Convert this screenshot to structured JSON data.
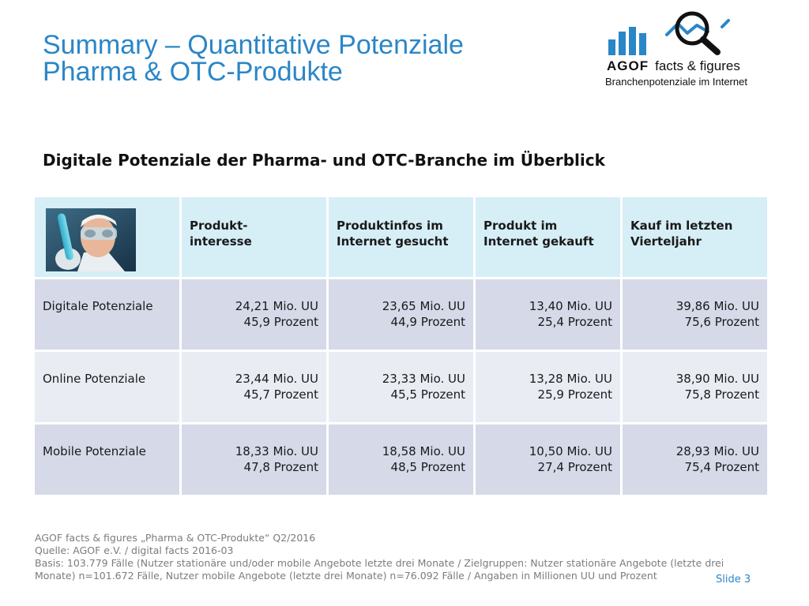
{
  "title": {
    "line1": "Summary – Quantitative Potenziale",
    "line2": "Pharma & OTC-Produkte"
  },
  "logo": {
    "brand": "AGOF",
    "product": "facts & figures",
    "tagline": "Branchenpotenziale im Internet",
    "colors": {
      "bars": "#2b86c7",
      "line": "#2b86c7",
      "magnifier": "#111111"
    },
    "icon": "magnifier-chart-icon"
  },
  "subtitle": "Digitale Potenziale der Pharma- und OTC-Branche im Überblick",
  "table": {
    "header_image": "lab-scientist-photo",
    "columns": [
      {
        "line1": "Produkt-",
        "line2": "interesse"
      },
      {
        "line1": "Produktinfos im",
        "line2": "Internet gesucht"
      },
      {
        "line1": "Produkt im",
        "line2": "Internet gekauft"
      },
      {
        "line1": "Kauf im letzten",
        "line2": "Vierteljahr"
      }
    ],
    "rows": [
      {
        "label": "Digitale Potenziale",
        "cells": [
          {
            "uu": "24,21 Mio. UU",
            "pct": "45,9 Prozent"
          },
          {
            "uu": "23,65 Mio. UU",
            "pct": "44,9 Prozent"
          },
          {
            "uu": "13,40 Mio. UU",
            "pct": "25,4 Prozent"
          },
          {
            "uu": "39,86 Mio. UU",
            "pct": "75,6 Prozent"
          }
        ]
      },
      {
        "label": "Online Potenziale",
        "cells": [
          {
            "uu": "23,44 Mio. UU",
            "pct": "45,7 Prozent"
          },
          {
            "uu": "23,33 Mio. UU",
            "pct": "45,5 Prozent"
          },
          {
            "uu": "13,28 Mio. UU",
            "pct": "25,9 Prozent"
          },
          {
            "uu": "38,90 Mio. UU",
            "pct": "75,8 Prozent"
          }
        ]
      },
      {
        "label": "Mobile Potenziale",
        "cells": [
          {
            "uu": "18,33 Mio. UU",
            "pct": "47,8 Prozent"
          },
          {
            "uu": "18,58 Mio. UU",
            "pct": "48,5 Prozent"
          },
          {
            "uu": "10,50 Mio. UU",
            "pct": "27,4 Prozent"
          },
          {
            "uu": "28,93 Mio. UU",
            "pct": "75,4 Prozent"
          }
        ]
      }
    ]
  },
  "footer": {
    "line1": "AGOF facts & figures „Pharma & OTC-Produkte“ Q2/2016",
    "line2": "Quelle: AGOF e.V. / digital facts 2016-03",
    "line3": "Basis: 103.779 Fälle (Nutzer stationäre und/oder mobile Angebote letzte drei Monate / Zielgruppen: Nutzer stationäre Angebote (letzte drei Monate) n=101.672 Fälle, Nutzer mobile Angebote (letzte drei Monate) n=76.092 Fälle / Angaben in Millionen UU und Prozent"
  },
  "slide_number": "Slide 3"
}
